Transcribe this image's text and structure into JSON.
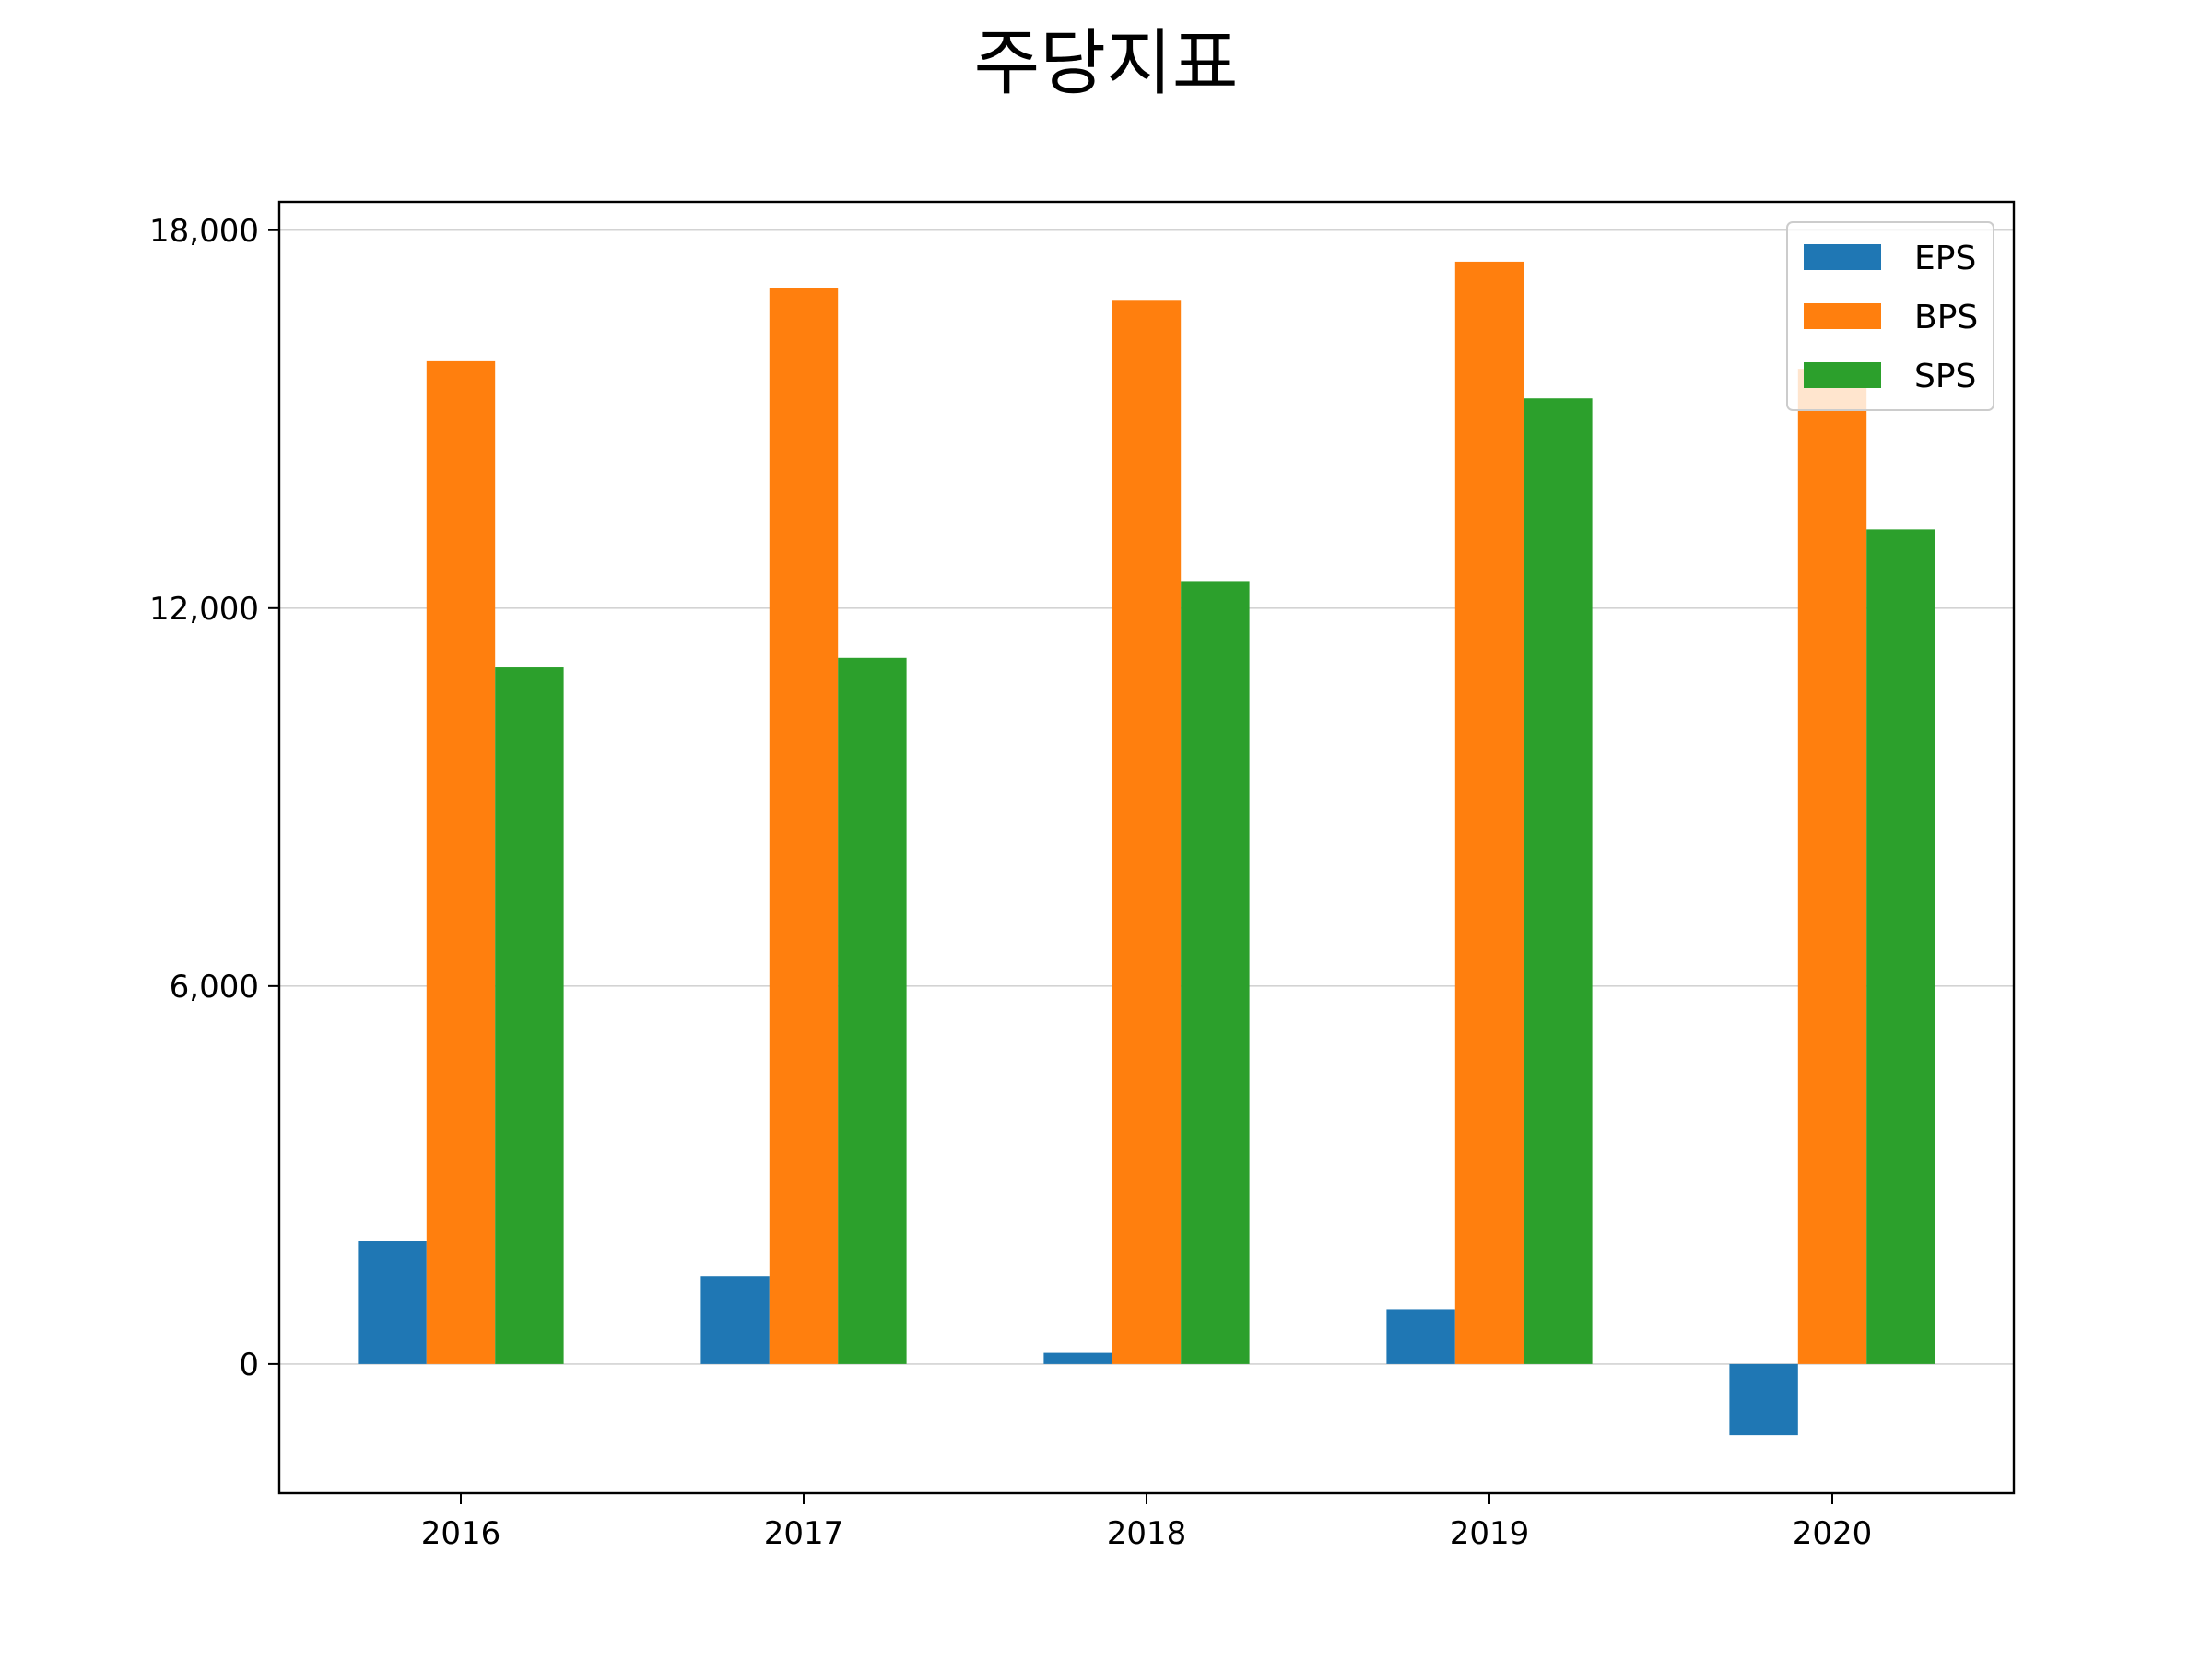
{
  "chart_data": {
    "type": "bar",
    "title": "주당지표",
    "xlabel": "",
    "ylabel": "",
    "categories": [
      "2016",
      "2017",
      "2018",
      "2019",
      "2020"
    ],
    "series": [
      {
        "name": "EPS",
        "color": "#1f77b4",
        "values": [
          1950,
          1400,
          180,
          870,
          -1130
        ]
      },
      {
        "name": "BPS",
        "color": "#ff7f0e",
        "values": [
          15920,
          17080,
          16880,
          17500,
          15800
        ]
      },
      {
        "name": "SPS",
        "color": "#2ca02c",
        "values": [
          11060,
          11210,
          12430,
          15330,
          13250
        ]
      }
    ],
    "ylim": [
      -2050,
      18450
    ],
    "yticks": [
      0,
      6000,
      12000,
      18000
    ],
    "ytick_labels": [
      "0",
      "6,000",
      "12,000",
      "18,000"
    ],
    "grid": true,
    "legend_position": "top-right"
  }
}
